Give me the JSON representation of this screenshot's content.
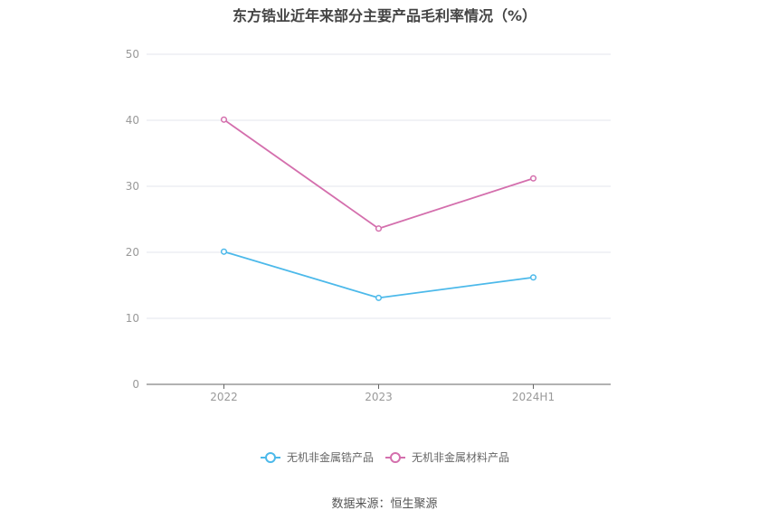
{
  "title": "东方锆业近年来部分主要产品毛利率情况（%）",
  "source": "数据来源：恒生聚源",
  "chart_data": {
    "type": "line",
    "title": "东方锆业近年来部分主要产品毛利率情况（%）",
    "categories": [
      "2022",
      "2023",
      "2024H1"
    ],
    "ylim": [
      0,
      50
    ],
    "yticks": [
      0,
      10,
      20,
      30,
      40,
      50
    ],
    "grid": true,
    "legend_position": "bottom",
    "series": [
      {
        "name": "无机非金属锆产品",
        "color": "#4cb9ea",
        "values": [
          20.1,
          13.1,
          16.2
        ]
      },
      {
        "name": "无机非金属材料产品",
        "color": "#d46fad",
        "values": [
          40.1,
          23.6,
          31.2
        ]
      }
    ]
  }
}
